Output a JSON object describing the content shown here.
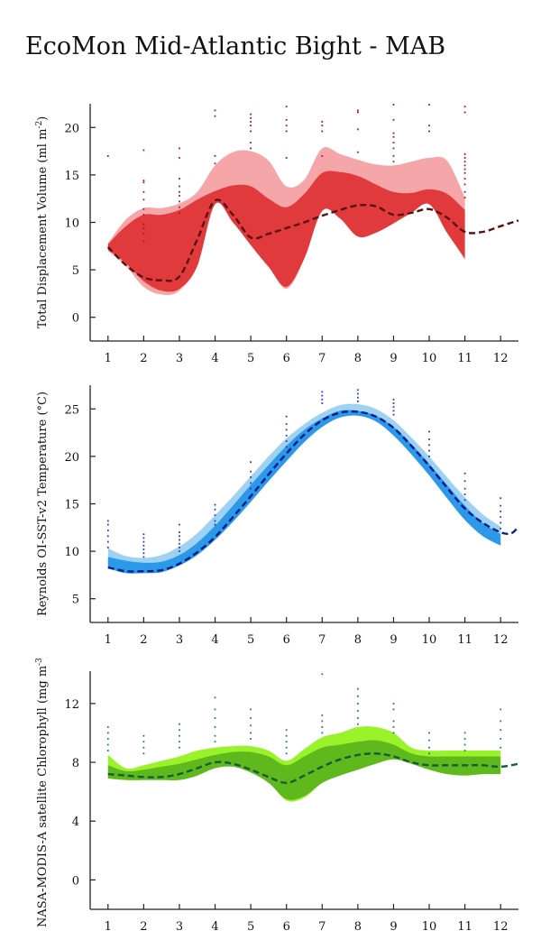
{
  "title": "EcoMon Mid-Atlantic Bight - MAB",
  "colors": {
    "red_outer": "#f5a6a8",
    "red_inner": "#e03a3c",
    "red_line": "#5a1010",
    "blue_outer": "#9fd2f2",
    "blue_inner": "#2c98e8",
    "blue_line": "#0b1c8a",
    "blue_dots": "#2a3cc0",
    "green_outer": "#99f22a",
    "green_inner": "#5fb81c",
    "green_line": "#155a3c",
    "green_dots": "#2b7a6a",
    "red_dots": "#a01c2a",
    "axis": "#222222"
  },
  "chart_data": [
    {
      "type": "area",
      "name": "displacement",
      "title": "",
      "xlabel": "",
      "ylabel": "Total Displacement Volume (ml m",
      "ylabel_sup": "-2",
      "ylabel_end": ")",
      "xlim": [
        0.5,
        12.5
      ],
      "ylim": [
        -2.5,
        22.5
      ],
      "x_ticks": [
        "1",
        "2",
        "3",
        "4",
        "5",
        "6",
        "7",
        "8",
        "9",
        "10",
        "11",
        "12"
      ],
      "y_ticks": [
        "0",
        "5",
        "10",
        "15",
        "20"
      ],
      "y_tick_values": [
        0,
        5,
        10,
        15,
        20
      ],
      "band_x": [
        1,
        1.5,
        2,
        2.5,
        3,
        3.5,
        4,
        4.5,
        5,
        5.5,
        6,
        6.5,
        7,
        7.5,
        8,
        8.5,
        9,
        9.5,
        10,
        10.5,
        11
      ],
      "outer_upper": [
        7.8,
        10.3,
        11.5,
        11.5,
        12,
        13.2,
        16,
        17.4,
        17.5,
        16.5,
        13.8,
        14.5,
        17.8,
        17.2,
        16.6,
        16.1,
        16,
        16.4,
        16.8,
        16.5,
        12.6
      ],
      "outer_lower": [
        7,
        5.4,
        3.2,
        2.4,
        2.8,
        5.6,
        12.2,
        10.3,
        7.8,
        5.5,
        3,
        6.2,
        11.4,
        10.6,
        8.6,
        9.1,
        10.2,
        11.4,
        12.3,
        9.2,
        6
      ],
      "inner_upper": [
        7.7,
        9.6,
        10.8,
        10.8,
        11.3,
        12.4,
        13.3,
        13.9,
        13.8,
        12.5,
        11.6,
        13,
        15.2,
        15.3,
        14.9,
        14,
        13.2,
        13.1,
        13.5,
        13,
        11.3
      ],
      "inner_lower": [
        7.1,
        5.7,
        3.8,
        2.8,
        3,
        5.4,
        11.9,
        10,
        7.6,
        5.3,
        3.2,
        6.2,
        11.2,
        10.4,
        8.5,
        8.9,
        9.9,
        11,
        11.9,
        8.9,
        6.2
      ],
      "mean_x": [
        1,
        1.5,
        2,
        2.5,
        3,
        3.5,
        4,
        4.5,
        5,
        5.5,
        6,
        6.5,
        7,
        7.5,
        8,
        8.5,
        9,
        9.5,
        10,
        10.5,
        11,
        11.5,
        12,
        12.5
      ],
      "mean_y": [
        7.4,
        5.5,
        4.2,
        3.9,
        4.3,
        8.2,
        12.3,
        10.8,
        8.4,
        8.8,
        9.4,
        10,
        10.7,
        11.3,
        11.8,
        11.7,
        10.8,
        11,
        11.4,
        10.5,
        9,
        9,
        9.6,
        10.2
      ],
      "obs_points": [
        [
          1,
          17
        ],
        [
          2,
          8
        ],
        [
          2,
          8.8
        ],
        [
          2,
          9.4
        ],
        [
          2,
          9.8
        ],
        [
          2,
          10.8
        ],
        [
          2,
          11.4
        ],
        [
          2,
          12.4
        ],
        [
          2,
          13.2
        ],
        [
          2,
          14.2
        ],
        [
          2,
          14.4
        ],
        [
          2,
          17.6
        ],
        [
          3,
          11
        ],
        [
          3,
          11.6
        ],
        [
          3,
          12.2
        ],
        [
          3,
          12.8
        ],
        [
          3,
          13.2
        ],
        [
          3,
          13.8
        ],
        [
          3,
          14.6
        ],
        [
          3,
          16.8
        ],
        [
          3,
          17.8
        ],
        [
          4,
          21.2
        ],
        [
          4,
          21.8
        ],
        [
          4,
          16.2
        ],
        [
          4,
          17
        ],
        [
          5,
          17.8
        ],
        [
          5,
          18.4
        ],
        [
          5,
          19.6
        ],
        [
          5,
          20.2
        ],
        [
          5,
          20.6
        ],
        [
          5,
          21
        ],
        [
          5,
          21.4
        ],
        [
          6,
          19.6
        ],
        [
          6,
          20.2
        ],
        [
          6,
          20.8
        ],
        [
          6,
          22.2
        ],
        [
          6,
          16.8
        ],
        [
          7,
          19.6
        ],
        [
          7,
          20.2
        ],
        [
          7,
          20.6
        ],
        [
          7,
          17
        ],
        [
          8,
          21.6
        ],
        [
          8,
          21.8
        ],
        [
          8,
          19.8
        ],
        [
          8,
          17.4
        ],
        [
          9,
          16.4
        ],
        [
          9,
          17
        ],
        [
          9,
          17.8
        ],
        [
          9,
          18.4
        ],
        [
          9,
          19
        ],
        [
          9,
          19.4
        ],
        [
          9,
          20.8
        ],
        [
          9,
          22.4
        ],
        [
          10,
          19.6
        ],
        [
          10,
          20.2
        ],
        [
          10,
          22.4
        ],
        [
          11,
          12.6
        ],
        [
          11,
          13.2
        ],
        [
          11,
          14
        ],
        [
          11,
          14.6
        ],
        [
          11,
          15.2
        ],
        [
          11,
          15.6
        ],
        [
          11,
          16
        ],
        [
          11,
          16.4
        ],
        [
          11,
          16.8
        ],
        [
          11,
          17.2
        ],
        [
          11,
          21.6
        ],
        [
          11,
          22.2
        ]
      ]
    },
    {
      "type": "area",
      "name": "temperature",
      "title": "",
      "xlabel": "",
      "ylabel": "Reynolds OI-SST-v2 Temperature (°C)",
      "ylabel_sup": "",
      "ylabel_end": "",
      "xlim": [
        0.5,
        12.5
      ],
      "ylim": [
        2.5,
        27.5
      ],
      "x_ticks": [
        "1",
        "2",
        "3",
        "4",
        "5",
        "6",
        "7",
        "8",
        "9",
        "10",
        "11",
        "12"
      ],
      "y_ticks": [
        "5",
        "10",
        "15",
        "20",
        "25"
      ],
      "y_tick_values": [
        5,
        10,
        15,
        20,
        25
      ],
      "band_x": [
        1,
        1.5,
        2,
        2.5,
        3,
        3.5,
        4,
        4.5,
        5,
        5.5,
        6,
        6.5,
        7,
        7.5,
        8,
        8.5,
        9,
        9.5,
        10,
        10.5,
        11,
        11.5,
        12
      ],
      "outer_upper": [
        10.3,
        9.5,
        9.3,
        9.6,
        10.5,
        11.9,
        13.8,
        15.8,
        17.9,
        20,
        21.9,
        23.4,
        24.6,
        25.4,
        25.5,
        25,
        23.8,
        22,
        20,
        17.8,
        15.7,
        13.9,
        12.6
      ],
      "outer_lower": [
        8.2,
        7.7,
        7.7,
        7.8,
        8.5,
        9.6,
        11.2,
        13.1,
        15.2,
        17.4,
        19.5,
        21.5,
        23.1,
        24.1,
        24.3,
        23.7,
        22.2,
        20.2,
        18,
        15.6,
        13.3,
        11.6,
        10.6
      ],
      "inner_upper": [
        9.4,
        9,
        8.8,
        8.9,
        9.6,
        10.9,
        12.7,
        14.8,
        17,
        19.1,
        21.1,
        22.8,
        24,
        24.8,
        24.8,
        24.3,
        23.1,
        21.3,
        19.2,
        17,
        14.8,
        13,
        11.8
      ],
      "inner_lower": [
        8.2,
        7.7,
        7.7,
        7.8,
        8.5,
        9.6,
        11.2,
        13.1,
        15.2,
        17.4,
        19.5,
        21.5,
        23.1,
        24.1,
        24.3,
        23.7,
        22.2,
        20.2,
        18,
        15.6,
        13.3,
        11.6,
        10.6
      ],
      "mean_x": [
        1,
        1.5,
        2,
        2.5,
        3,
        3.5,
        4,
        4.5,
        5,
        5.5,
        6,
        6.5,
        7,
        7.5,
        8,
        8.5,
        9,
        9.5,
        10,
        10.5,
        11,
        11.5,
        12,
        12.3,
        12.5
      ],
      "mean_y": [
        8.3,
        7.9,
        7.9,
        8,
        8.7,
        9.9,
        11.5,
        13.6,
        15.8,
        18.1,
        20.3,
        22.3,
        23.8,
        24.6,
        24.7,
        24.2,
        23,
        21.1,
        19,
        16.7,
        14.5,
        13,
        12,
        11.9,
        12.6
      ],
      "obs_points": [
        [
          1,
          11
        ],
        [
          1,
          11.6
        ],
        [
          1,
          12.2
        ],
        [
          1,
          12.8
        ],
        [
          1,
          13.2
        ],
        [
          1,
          10.4
        ],
        [
          2,
          9.4
        ],
        [
          2,
          9.8
        ],
        [
          2,
          10.2
        ],
        [
          2,
          10.6
        ],
        [
          2,
          11
        ],
        [
          2,
          11.4
        ],
        [
          2,
          11.8
        ],
        [
          3,
          10
        ],
        [
          3,
          10.4
        ],
        [
          3,
          10.8
        ],
        [
          3,
          11.2
        ],
        [
          3,
          11.6
        ],
        [
          3,
          12
        ],
        [
          3,
          12.8
        ],
        [
          4,
          12.8
        ],
        [
          4,
          13.2
        ],
        [
          4,
          13.8
        ],
        [
          4,
          14.4
        ],
        [
          4,
          14.9
        ],
        [
          5,
          16.6
        ],
        [
          5,
          17.2
        ],
        [
          5,
          17.8
        ],
        [
          5,
          18.4
        ],
        [
          5,
          19.4
        ],
        [
          6,
          21
        ],
        [
          6,
          21.6
        ],
        [
          6,
          22.2
        ],
        [
          6,
          22.8
        ],
        [
          6,
          23.4
        ],
        [
          6,
          24.2
        ],
        [
          7,
          25.6
        ],
        [
          7,
          26
        ],
        [
          7,
          26.4
        ],
        [
          7,
          26.8
        ],
        [
          8,
          25.8
        ],
        [
          8,
          26.2
        ],
        [
          8,
          26.6
        ],
        [
          8,
          27
        ],
        [
          9,
          24.4
        ],
        [
          9,
          24.8
        ],
        [
          9,
          25.2
        ],
        [
          9,
          25.6
        ],
        [
          9,
          26
        ],
        [
          10,
          20
        ],
        [
          10,
          20.6
        ],
        [
          10,
          21.2
        ],
        [
          10,
          21.8
        ],
        [
          10,
          22.6
        ],
        [
          11,
          14.6
        ],
        [
          11,
          15.4
        ],
        [
          11,
          16
        ],
        [
          11,
          16.6
        ],
        [
          11,
          17.4
        ],
        [
          11,
          18.2
        ],
        [
          12,
          12.4
        ],
        [
          12,
          13
        ],
        [
          12,
          13.6
        ],
        [
          12,
          14.2
        ],
        [
          12,
          14.8
        ],
        [
          12,
          15.6
        ]
      ]
    },
    {
      "type": "area",
      "name": "chlorophyll",
      "title": "",
      "xlabel": "",
      "ylabel": "NASA-MODIS-A satellite Chlorophyll (mg m",
      "ylabel_sup": "-3",
      "ylabel_end": ")",
      "xlim": [
        0.5,
        12.5
      ],
      "ylim": [
        -2,
        14.2
      ],
      "x_ticks": [
        "1",
        "2",
        "3",
        "4",
        "5",
        "6",
        "7",
        "8",
        "9",
        "10",
        "11",
        "12"
      ],
      "y_ticks": [
        "0",
        "4",
        "8",
        "12"
      ],
      "y_tick_values": [
        0,
        4,
        8,
        12
      ],
      "band_x": [
        1,
        1.5,
        2,
        2.5,
        3,
        3.5,
        4,
        4.5,
        5,
        5.5,
        6,
        6.5,
        7,
        7.5,
        8,
        8.5,
        9,
        9.5,
        10,
        10.5,
        11,
        11.5,
        12
      ],
      "outer_upper": [
        8.5,
        7.6,
        7.8,
        8.1,
        8.4,
        8.8,
        9,
        9.1,
        9.1,
        8.8,
        8.1,
        8.9,
        9.7,
        10,
        10.4,
        10.4,
        10,
        9,
        8.8,
        8.8,
        8.8,
        8.8,
        8.8
      ],
      "outer_lower": [
        6.9,
        6.8,
        6.8,
        6.8,
        6.8,
        7.1,
        7.7,
        7.8,
        7.4,
        6.7,
        5.4,
        5.6,
        6.6,
        7.2,
        7.6,
        8,
        8.3,
        8,
        7.6,
        7.3,
        7.2,
        7.3,
        7.3
      ],
      "inner_upper": [
        7.8,
        7.4,
        7.5,
        7.7,
        7.9,
        8.2,
        8.5,
        8.7,
        8.7,
        8.4,
        7.8,
        8.4,
        9,
        9.2,
        9.4,
        9.5,
        9.2,
        8.6,
        8.4,
        8.4,
        8.4,
        8.4,
        8.4
      ],
      "inner_lower": [
        6.9,
        6.8,
        6.8,
        6.8,
        6.8,
        7.1,
        7.6,
        7.7,
        7.3,
        6.6,
        5.5,
        5.7,
        6.6,
        7.1,
        7.5,
        7.9,
        8.2,
        7.9,
        7.5,
        7.2,
        7.1,
        7.2,
        7.2
      ],
      "mean_x": [
        1,
        1.5,
        2,
        2.5,
        3,
        3.5,
        4,
        4.5,
        5,
        5.5,
        6,
        6.5,
        7,
        7.5,
        8,
        8.5,
        9,
        9.5,
        10,
        10.5,
        11,
        11.5,
        12,
        12.5
      ],
      "mean_y": [
        7.2,
        7.1,
        7,
        7,
        7.2,
        7.6,
        8,
        7.9,
        7.5,
        7,
        6.6,
        7.1,
        7.7,
        8.2,
        8.5,
        8.6,
        8.4,
        8,
        7.8,
        7.8,
        7.8,
        7.8,
        7.7,
        7.9
      ],
      "obs_points": [
        [
          1,
          8.8
        ],
        [
          1,
          9.2
        ],
        [
          1,
          9.6
        ],
        [
          1,
          10
        ],
        [
          1,
          10.4
        ],
        [
          2,
          8.6
        ],
        [
          2,
          9
        ],
        [
          2,
          9.4
        ],
        [
          2,
          9.8
        ],
        [
          3,
          9
        ],
        [
          3,
          9.4
        ],
        [
          3,
          9.8
        ],
        [
          3,
          10.2
        ],
        [
          3,
          10.6
        ],
        [
          4,
          9.4
        ],
        [
          4,
          9.8
        ],
        [
          4,
          10.4
        ],
        [
          4,
          11
        ],
        [
          4,
          11.6
        ],
        [
          4,
          12.4
        ],
        [
          5,
          9.6
        ],
        [
          5,
          10
        ],
        [
          5,
          10.5
        ],
        [
          5,
          11
        ],
        [
          5,
          11.6
        ],
        [
          6,
          8.6
        ],
        [
          6,
          9
        ],
        [
          6,
          9.4
        ],
        [
          6,
          9.8
        ],
        [
          6,
          10.2
        ],
        [
          7,
          10
        ],
        [
          7,
          10.4
        ],
        [
          7,
          10.8
        ],
        [
          7,
          11.2
        ],
        [
          7,
          14
        ],
        [
          8,
          10.6
        ],
        [
          8,
          11
        ],
        [
          8,
          11.5
        ],
        [
          8,
          12
        ],
        [
          8,
          12.5
        ],
        [
          8,
          13
        ],
        [
          9,
          10
        ],
        [
          9,
          10.4
        ],
        [
          9,
          10.8
        ],
        [
          9,
          11.6
        ],
        [
          9,
          12
        ],
        [
          10,
          8.6
        ],
        [
          10,
          9
        ],
        [
          10,
          9.5
        ],
        [
          10,
          10
        ],
        [
          11,
          8.8
        ],
        [
          11,
          9.2
        ],
        [
          11,
          9.6
        ],
        [
          11,
          10
        ],
        [
          12,
          9
        ],
        [
          12,
          9.6
        ],
        [
          12,
          10.2
        ],
        [
          12,
          10.8
        ],
        [
          12,
          11.6
        ]
      ]
    }
  ]
}
